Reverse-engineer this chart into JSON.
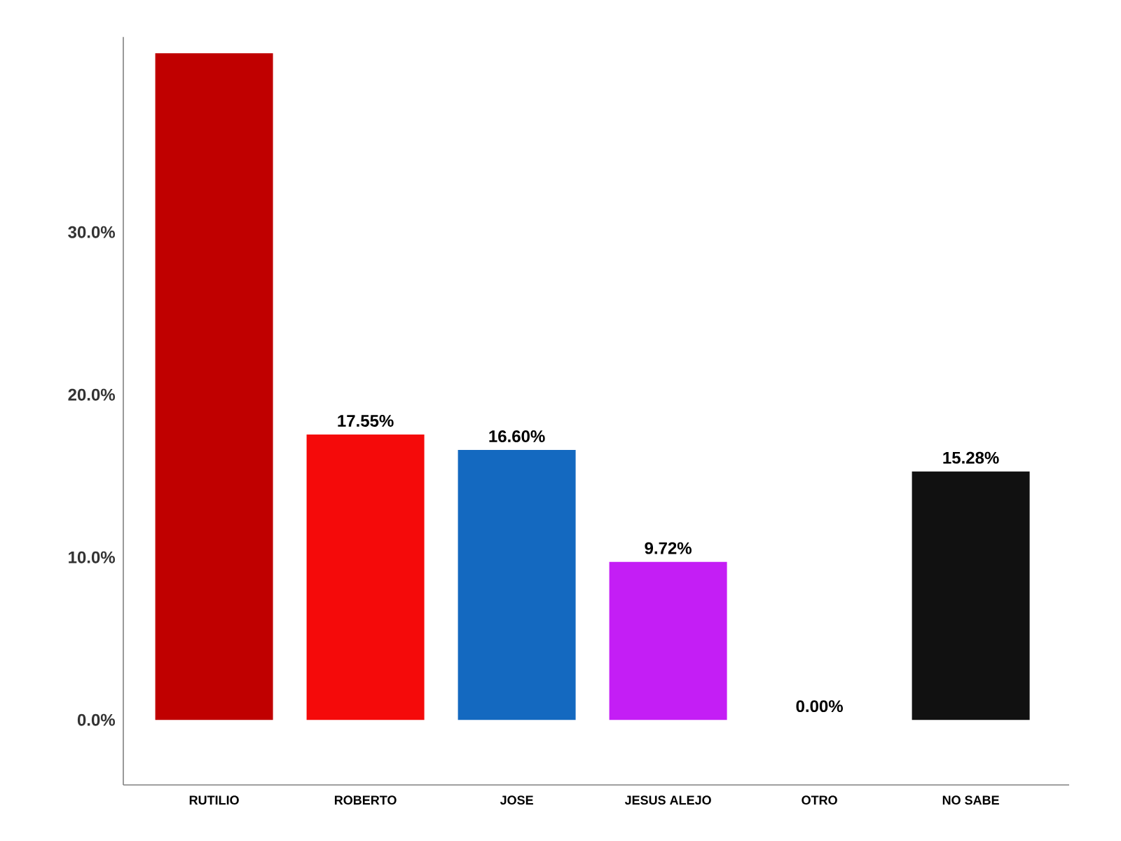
{
  "chart_data": {
    "type": "bar",
    "categories": [
      "RUTILIO",
      "ROBERTO",
      "JOSE",
      "JESUS ALEJO",
      "OTRO",
      "NO SABE"
    ],
    "values": [
      41,
      17.55,
      16.6,
      9.72,
      0.0,
      15.28
    ],
    "colors": [
      "#c00000",
      "#f50a0a",
      "#1469c0",
      "#c41ef5",
      "#888888",
      "#111111"
    ],
    "value_labels": [
      null,
      "17.55%",
      "16.60%",
      "9.72%",
      "0.00%",
      "15.28%"
    ],
    "ylim": [
      -4,
      42
    ],
    "yticks": [
      {
        "value": 0,
        "label": "0.0%"
      },
      {
        "value": 10,
        "label": "10.0%"
      },
      {
        "value": 20,
        "label": "20.0%"
      },
      {
        "value": 30,
        "label": "30.0%"
      }
    ],
    "grid": false
  }
}
